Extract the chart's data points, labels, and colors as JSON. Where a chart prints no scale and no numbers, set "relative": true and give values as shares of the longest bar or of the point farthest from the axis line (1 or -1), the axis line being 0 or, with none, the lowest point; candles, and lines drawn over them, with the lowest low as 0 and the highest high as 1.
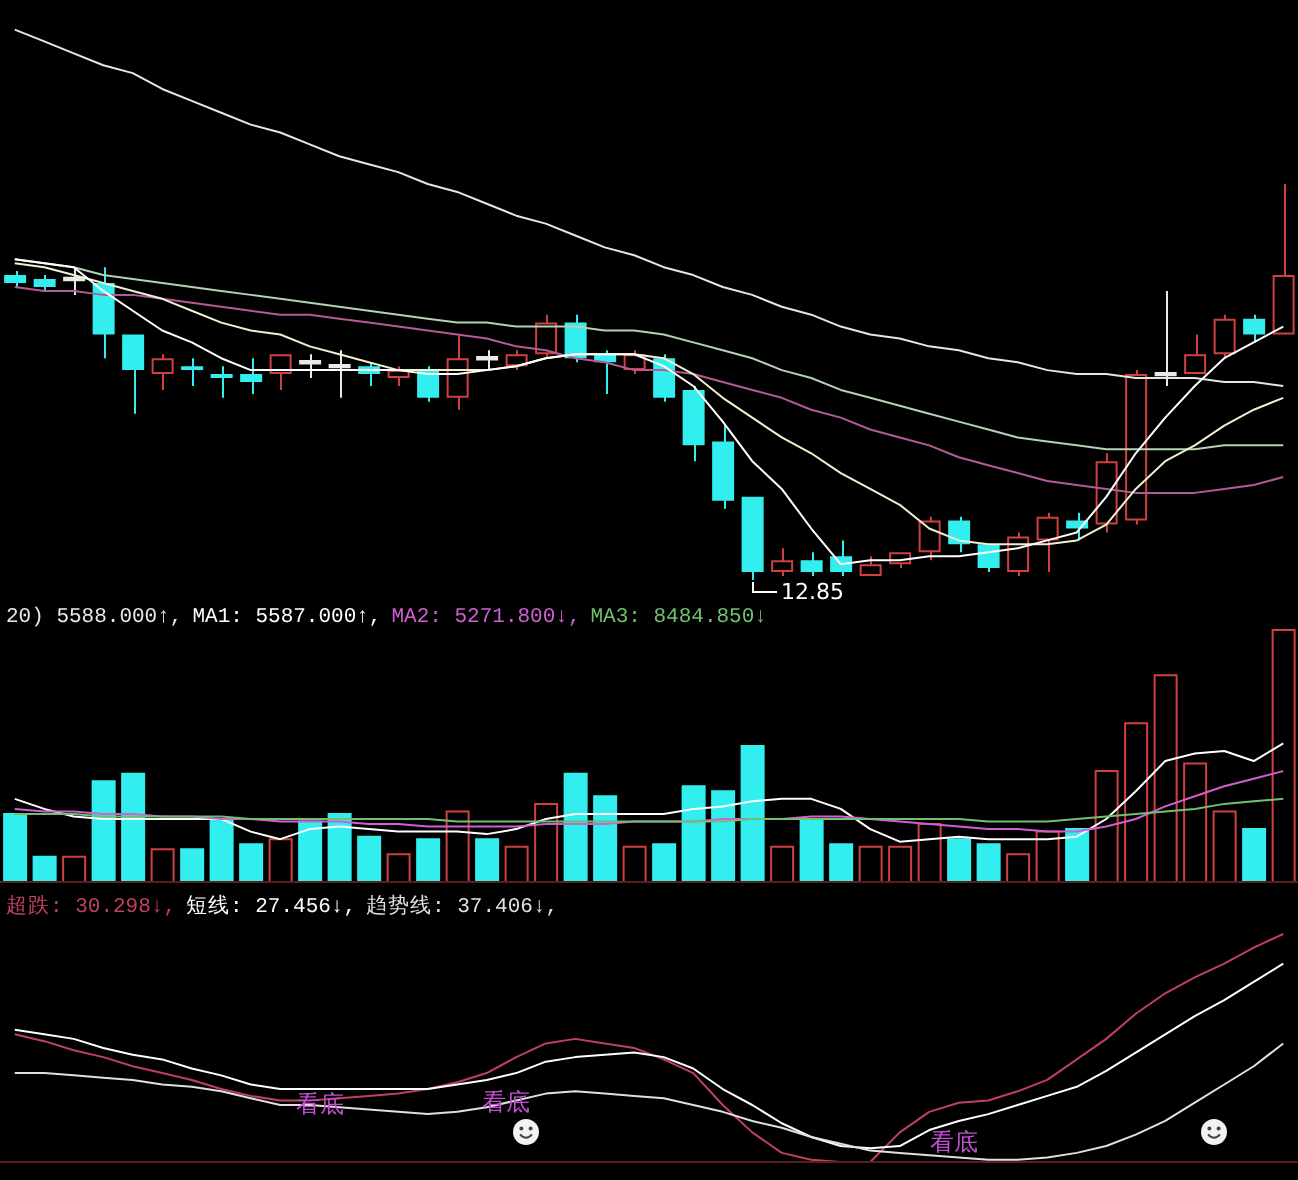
{
  "chart_data": [
    {
      "type": "candlestick",
      "relative": true,
      "categories": [
        null,
        null,
        null,
        null,
        null,
        null,
        null,
        null,
        null,
        null,
        null,
        null,
        null,
        null,
        null,
        null,
        null,
        null,
        null,
        null,
        null,
        null,
        null,
        null,
        null,
        null,
        null,
        null,
        null,
        null,
        null,
        null,
        null,
        null,
        null,
        null,
        null,
        null,
        null,
        null,
        null,
        null,
        null,
        null
      ],
      "ohlc": [
        [
          0.77,
          0.78,
          0.74,
          0.75
        ],
        [
          0.76,
          0.77,
          0.73,
          0.74
        ],
        [
          0.76,
          0.79,
          0.72,
          0.76
        ],
        [
          0.75,
          0.79,
          0.56,
          0.62
        ],
        [
          0.62,
          0.62,
          0.42,
          0.53
        ],
        [
          0.52,
          0.57,
          0.48,
          0.56
        ],
        [
          0.54,
          0.56,
          0.49,
          0.53
        ],
        [
          0.52,
          0.54,
          0.46,
          0.51
        ],
        [
          0.52,
          0.56,
          0.47,
          0.5
        ],
        [
          0.52,
          0.57,
          0.48,
          0.57
        ],
        [
          0.55,
          0.57,
          0.51,
          0.55
        ],
        [
          0.54,
          0.58,
          0.46,
          0.54
        ],
        [
          0.54,
          0.55,
          0.49,
          0.52
        ],
        [
          0.51,
          0.54,
          0.49,
          0.53
        ],
        [
          0.53,
          0.54,
          0.45,
          0.46
        ],
        [
          0.46,
          0.62,
          0.43,
          0.56
        ],
        [
          0.56,
          0.58,
          0.53,
          0.56
        ],
        [
          0.54,
          0.58,
          0.53,
          0.57
        ],
        [
          0.57,
          0.67,
          0.56,
          0.65
        ],
        [
          0.65,
          0.67,
          0.55,
          0.56
        ],
        [
          0.57,
          0.58,
          0.47,
          0.55
        ],
        [
          0.53,
          0.58,
          0.52,
          0.57
        ],
        [
          0.56,
          0.57,
          0.45,
          0.46
        ],
        [
          0.48,
          0.49,
          0.3,
          0.34
        ],
        [
          0.35,
          0.39,
          0.18,
          0.2
        ],
        [
          0.21,
          0.21,
          0,
          0.02
        ],
        [
          0.02,
          0.08,
          0.01,
          0.05
        ],
        [
          0.05,
          0.07,
          0.01,
          0.02
        ],
        [
          0.06,
          0.1,
          0.01,
          0.02
        ],
        [
          0.01,
          0.06,
          0.01,
          0.04
        ],
        [
          0.04,
          0.07,
          0.03,
          0.07
        ],
        [
          0.07,
          0.16,
          0.05,
          0.15
        ],
        [
          0.15,
          0.16,
          0.07,
          0.09
        ],
        [
          0.09,
          0.09,
          0.02,
          0.03
        ],
        [
          0.02,
          0.12,
          0.01,
          0.11
        ],
        [
          0.1,
          0.17,
          0.02,
          0.16
        ],
        [
          0.15,
          0.17,
          0.1,
          0.13
        ],
        [
          0.14,
          0.32,
          0.12,
          0.3
        ],
        [
          0.15,
          0.53,
          0.14,
          0.52
        ],
        [
          0.52,
          0.73,
          0.49,
          0.52
        ],
        [
          0.52,
          0.62,
          0.52,
          0.57
        ],
        [
          0.57,
          0.67,
          0.56,
          0.66
        ],
        [
          0.66,
          0.67,
          0.6,
          0.62
        ],
        [
          0.62,
          1,
          0.62,
          0.77
        ]
      ],
      "colors": [
        "#33eeee",
        "#33eeee",
        "#e8e8e8",
        "#33eeee",
        "#33eeee",
        "#d04040",
        "#33eeee",
        "#33eeee",
        "#33eeee",
        "#d04040",
        "#e8e8e8",
        "#e8e8e8",
        "#33eeee",
        "#d04040",
        "#33eeee",
        "#d04040",
        "#e8e8e8",
        "#d04040",
        "#d04040",
        "#33eeee",
        "#33eeee",
        "#d04040",
        "#33eeee",
        "#33eeee",
        "#33eeee",
        "#33eeee",
        "#d04040",
        "#33eeee",
        "#33eeee",
        "#d04040",
        "#d04040",
        "#d04040",
        "#33eeee",
        "#33eeee",
        "#d04040",
        "#d04040",
        "#33eeee",
        "#d04040",
        "#d04040",
        "#e8e8e8",
        "#d04040",
        "#d04040",
        "#33eeee",
        "#d04040"
      ],
      "series": [
        {
          "type": "line",
          "color": "#e6e6e6",
          "values": [
            1.39,
            1.36,
            1.33,
            1.3,
            1.28,
            1.24,
            1.21,
            1.18,
            1.15,
            1.13,
            1.1,
            1.07,
            1.05,
            1.03,
            1.0,
            0.98,
            0.95,
            0.92,
            0.9,
            0.87,
            0.84,
            0.82,
            0.79,
            0.77,
            0.74,
            0.72,
            0.69,
            0.67,
            0.64,
            0.62,
            0.61,
            0.59,
            0.58,
            0.56,
            0.55,
            0.53,
            0.52,
            0.52,
            0.51,
            0.51,
            0.51,
            0.5,
            0.5,
            0.49
          ]
        },
        {
          "type": "line",
          "color": "#b4d2b4",
          "values": [
            0.81,
            0.8,
            0.79,
            0.77,
            0.76,
            0.75,
            0.74,
            0.73,
            0.72,
            0.71,
            0.7,
            0.69,
            0.68,
            0.67,
            0.66,
            0.65,
            0.65,
            0.64,
            0.64,
            0.64,
            0.63,
            0.63,
            0.62,
            0.6,
            0.58,
            0.56,
            0.53,
            0.51,
            0.48,
            0.46,
            0.44,
            0.42,
            0.4,
            0.38,
            0.36,
            0.35,
            0.34,
            0.33,
            0.33,
            0.33,
            0.33,
            0.34,
            0.34,
            0.34
          ]
        },
        {
          "type": "line",
          "color": "#b45a96",
          "values": [
            0.74,
            0.73,
            0.73,
            0.72,
            0.72,
            0.71,
            0.7,
            0.69,
            0.68,
            0.67,
            0.67,
            0.66,
            0.65,
            0.64,
            0.63,
            0.62,
            0.61,
            0.59,
            0.58,
            0.56,
            0.55,
            0.53,
            0.53,
            0.52,
            0.5,
            0.48,
            0.46,
            0.43,
            0.41,
            0.38,
            0.36,
            0.34,
            0.31,
            0.29,
            0.27,
            0.25,
            0.24,
            0.23,
            0.22,
            0.22,
            0.22,
            0.23,
            0.24,
            0.26
          ]
        },
        {
          "type": "line",
          "color": "#f0f0d0",
          "values": [
            0.8,
            0.79,
            0.77,
            0.75,
            0.73,
            0.71,
            0.68,
            0.65,
            0.63,
            0.62,
            0.59,
            0.57,
            0.55,
            0.53,
            0.53,
            0.53,
            0.53,
            0.54,
            0.56,
            0.57,
            0.57,
            0.57,
            0.56,
            0.52,
            0.46,
            0.41,
            0.36,
            0.32,
            0.27,
            0.23,
            0.19,
            0.13,
            0.1,
            0.09,
            0.09,
            0.09,
            0.1,
            0.14,
            0.23,
            0.3,
            0.34,
            0.39,
            0.43,
            0.46
          ]
        },
        {
          "type": "line",
          "color": "#ffffff",
          "values": [
            0.81,
            0.8,
            0.79,
            0.73,
            0.68,
            0.63,
            0.6,
            0.56,
            0.53,
            0.53,
            0.53,
            0.53,
            0.53,
            0.53,
            0.52,
            0.52,
            0.53,
            0.54,
            0.56,
            0.57,
            0.57,
            0.57,
            0.54,
            0.49,
            0.4,
            0.3,
            0.23,
            0.13,
            0.04,
            0.05,
            0.05,
            0.06,
            0.06,
            0.07,
            0.08,
            0.1,
            0.12,
            0.21,
            0.32,
            0.41,
            0.49,
            0.56,
            0.6,
            0.64
          ]
        }
      ],
      "annotations": [
        "12.85"
      ]
    },
    {
      "type": "bar",
      "relative": true,
      "title": "20) 5588.000↑,",
      "categories": [
        null,
        null,
        null,
        null,
        null,
        null,
        null,
        null,
        null,
        null,
        null,
        null,
        null,
        null,
        null,
        null,
        null,
        null,
        null,
        null,
        null,
        null,
        null,
        null,
        null,
        null,
        null,
        null,
        null,
        null,
        null,
        null,
        null,
        null,
        null,
        null,
        null,
        null,
        null,
        null,
        null,
        null,
        null,
        null
      ],
      "series": [
        {
          "type": "bar",
          "colors": [
            "#33eeee",
            "#33eeee",
            "#d04040",
            "#33eeee",
            "#33eeee",
            "#d04040",
            "#33eeee",
            "#33eeee",
            "#33eeee",
            "#d04040",
            "#33eeee",
            "#33eeee",
            "#33eeee",
            "#d04040",
            "#33eeee",
            "#d04040",
            "#33eeee",
            "#d04040",
            "#d04040",
            "#33eeee",
            "#33eeee",
            "#d04040",
            "#33eeee",
            "#33eeee",
            "#33eeee",
            "#33eeee",
            "#d04040",
            "#33eeee",
            "#33eeee",
            "#d04040",
            "#d04040",
            "#d04040",
            "#33eeee",
            "#33eeee",
            "#d04040",
            "#d04040",
            "#33eeee",
            "#d04040",
            "#d04040",
            "#d04040",
            "#d04040",
            "#d04040",
            "#33eeee",
            "#d04040"
          ],
          "values": [
            0.27,
            0.1,
            0.1,
            0.4,
            0.43,
            0.13,
            0.13,
            0.25,
            0.15,
            0.17,
            0.24,
            0.27,
            0.18,
            0.11,
            0.17,
            0.28,
            0.17,
            0.14,
            0.31,
            0.43,
            0.34,
            0.14,
            0.15,
            0.38,
            0.36,
            0.54,
            0.14,
            0.25,
            0.15,
            0.14,
            0.14,
            0.23,
            0.17,
            0.15,
            0.11,
            0.2,
            0.21,
            0.44,
            0.63,
            0.82,
            0.47,
            0.28,
            0.21,
            1
          ]
        },
        {
          "type": "line",
          "name": "MA1: 5587.000↑,",
          "color": "#ffffff",
          "values": [
            0.33,
            0.29,
            0.26,
            0.25,
            0.25,
            0.25,
            0.25,
            0.25,
            0.2,
            0.17,
            0.21,
            0.22,
            0.21,
            0.2,
            0.2,
            0.2,
            0.19,
            0.21,
            0.25,
            0.27,
            0.27,
            0.27,
            0.27,
            0.29,
            0.3,
            0.32,
            0.33,
            0.33,
            0.29,
            0.21,
            0.16,
            0.17,
            0.18,
            0.17,
            0.17,
            0.17,
            0.18,
            0.25,
            0.36,
            0.48,
            0.51,
            0.52,
            0.48,
            0.55
          ]
        },
        {
          "type": "line",
          "name": "MA2: 5271.800↓,",
          "color": "#d060d0",
          "values": [
            0.29,
            0.28,
            0.28,
            0.27,
            0.27,
            0.26,
            0.26,
            0.25,
            0.25,
            0.24,
            0.24,
            0.24,
            0.23,
            0.23,
            0.22,
            0.22,
            0.22,
            0.22,
            0.23,
            0.23,
            0.23,
            0.24,
            0.24,
            0.24,
            0.25,
            0.25,
            0.25,
            0.26,
            0.26,
            0.25,
            0.24,
            0.23,
            0.22,
            0.21,
            0.21,
            0.2,
            0.2,
            0.22,
            0.25,
            0.3,
            0.34,
            0.38,
            0.41,
            0.44
          ]
        },
        {
          "type": "line",
          "name": "MA3: 8484.850↓",
          "color": "#70c070",
          "values": [
            0.27,
            0.27,
            0.27,
            0.26,
            0.26,
            0.26,
            0.26,
            0.26,
            0.25,
            0.25,
            0.25,
            0.25,
            0.25,
            0.25,
            0.25,
            0.24,
            0.24,
            0.24,
            0.24,
            0.24,
            0.24,
            0.24,
            0.24,
            0.24,
            0.24,
            0.25,
            0.25,
            0.25,
            0.25,
            0.25,
            0.25,
            0.25,
            0.25,
            0.24,
            0.24,
            0.24,
            0.25,
            0.26,
            0.27,
            0.28,
            0.29,
            0.31,
            0.32,
            0.33
          ]
        }
      ]
    },
    {
      "type": "line",
      "relative": true,
      "categories": [
        null,
        null,
        null,
        null,
        null,
        null,
        null,
        null,
        null,
        null,
        null,
        null,
        null,
        null,
        null,
        null,
        null,
        null,
        null,
        null,
        null,
        null,
        null,
        null,
        null,
        null,
        null,
        null,
        null,
        null,
        null,
        null,
        null,
        null,
        null,
        null,
        null,
        null,
        null,
        null,
        null,
        null,
        null,
        null
      ],
      "series": [
        {
          "name": "超跌: 30.298↓,",
          "color": "#c04060",
          "values": [
            0.56,
            0.53,
            0.49,
            0.46,
            0.42,
            0.39,
            0.36,
            0.32,
            0.29,
            0.27,
            0.27,
            0.28,
            0.29,
            0.3,
            0.32,
            0.35,
            0.39,
            0.46,
            0.52,
            0.54,
            0.52,
            0.5,
            0.45,
            0.39,
            0.25,
            0.13,
            0.04,
            0.01,
            0,
            0,
            0.13,
            0.22,
            0.26,
            0.27,
            0.31,
            0.36,
            0.45,
            0.54,
            0.65,
            0.74,
            0.81,
            0.87,
            0.94,
            1
          ]
        },
        {
          "name": "短线: 27.456↓,",
          "color": "#ffffff",
          "values": [
            0.58,
            0.56,
            0.54,
            0.5,
            0.47,
            0.45,
            0.41,
            0.38,
            0.34,
            0.32,
            0.32,
            0.32,
            0.32,
            0.32,
            0.32,
            0.34,
            0.36,
            0.39,
            0.44,
            0.46,
            0.47,
            0.48,
            0.46,
            0.41,
            0.32,
            0.25,
            0.17,
            0.11,
            0.07,
            0.06,
            0.07,
            0.14,
            0.18,
            0.21,
            0.25,
            0.29,
            0.33,
            0.4,
            0.48,
            0.56,
            0.64,
            0.71,
            0.79,
            0.87
          ]
        },
        {
          "name": "趋势线: 37.406↓,",
          "color": "#e0e0e0",
          "values": [
            0.39,
            0.39,
            0.38,
            0.37,
            0.36,
            0.34,
            0.33,
            0.31,
            0.28,
            0.25,
            0.25,
            0.24,
            0.23,
            0.22,
            0.21,
            0.22,
            0.24,
            0.27,
            0.3,
            0.31,
            0.3,
            0.29,
            0.28,
            0.25,
            0.22,
            0.18,
            0.15,
            0.11,
            0.08,
            0.05,
            0.04,
            0.03,
            0.02,
            0.01,
            0.01,
            0.02,
            0.04,
            0.07,
            0.12,
            0.18,
            0.26,
            0.34,
            0.42,
            0.52
          ]
        }
      ],
      "annotations": [
        "看底",
        "看底",
        "看底"
      ]
    }
  ]
}
